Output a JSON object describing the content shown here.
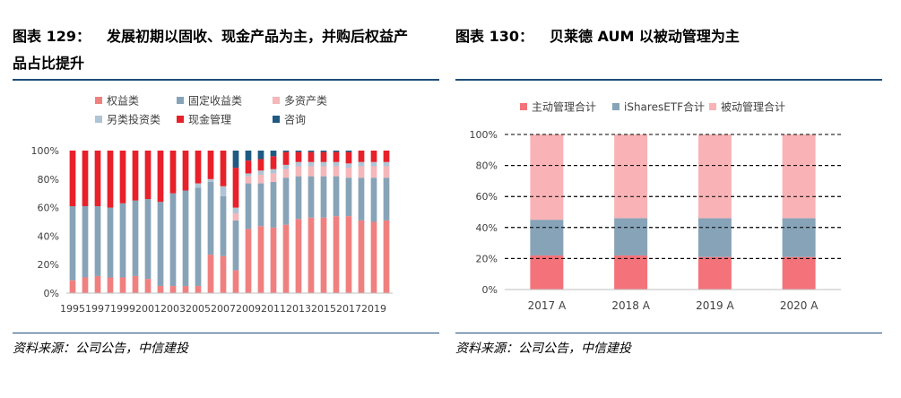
{
  "left": {
    "title_label": "图表 129：",
    "title_line1": "发展初期以固收、现金产品为主，并购后权益产",
    "title_line2": "品占比提升",
    "source": "资料来源：公司公告，中信建投"
  },
  "right": {
    "title_label": "图表 130：",
    "title_text": "贝莱德 AUM 以被动管理为主",
    "source": "资料来源：公司公告，中信建投"
  },
  "colors": {
    "rule": "#1f4e79",
    "equity": "#f08080",
    "fixed": "#87a3b8",
    "multi": "#f5b7b9",
    "alt": "#b0c4d4",
    "cash": "#e8202a",
    "advisory": "#1e5a82",
    "active": "#f4737a",
    "ishares": "#87a3b8",
    "passive": "#f9b3b6"
  },
  "chart_data": [
    {
      "type": "bar",
      "stacked": true,
      "percent": true,
      "title": "",
      "xlabel": "",
      "ylabel": "",
      "ylim": [
        0,
        100
      ],
      "yticks": [
        "0%",
        "20%",
        "40%",
        "60%",
        "80%",
        "100%"
      ],
      "categories": [
        "1995",
        "1996",
        "1997",
        "1998",
        "1999",
        "2000",
        "2001",
        "2002",
        "2003",
        "2004",
        "2005",
        "2006",
        "2007",
        "2008",
        "2009",
        "2010",
        "2011",
        "2012",
        "2013",
        "2014",
        "2015",
        "2016",
        "2017",
        "2018",
        "2019",
        "2020"
      ],
      "xtick_labels": [
        "1995",
        "1997",
        "1999",
        "2001",
        "2003",
        "2005",
        "2007",
        "2009",
        "2011",
        "2013",
        "2015",
        "2017",
        "2019"
      ],
      "series": [
        {
          "name": "权益类",
          "color_key": "equity",
          "values": [
            9,
            11,
            12,
            11,
            11,
            12,
            10,
            5,
            5,
            5,
            5,
            27,
            26,
            16,
            45,
            47,
            46,
            48,
            52,
            53,
            53,
            54,
            54,
            51,
            50,
            51
          ]
        },
        {
          "name": "固定收益类",
          "color_key": "fixed",
          "values": [
            52,
            50,
            49,
            49,
            52,
            53,
            56,
            59,
            65,
            67,
            69,
            51,
            42,
            35,
            32,
            30,
            32,
            33,
            30,
            29,
            29,
            28,
            27,
            30,
            31,
            30
          ]
        },
        {
          "name": "多资产类",
          "color_key": "multi",
          "values": [
            0,
            0,
            0,
            0,
            0,
            0,
            0,
            0,
            0,
            0,
            0,
            0,
            0,
            5,
            5,
            6,
            6,
            6,
            7,
            7,
            7,
            7,
            7,
            8,
            8,
            8
          ]
        },
        {
          "name": "另类投资类",
          "color_key": "alt",
          "values": [
            0,
            0,
            0,
            0,
            0,
            0,
            0,
            0,
            0,
            0,
            3,
            2,
            7,
            4,
            2,
            3,
            3,
            3,
            3,
            3,
            3,
            3,
            3,
            3,
            3,
            3
          ]
        },
        {
          "name": "现金管理",
          "color_key": "cash",
          "values": [
            39,
            39,
            39,
            40,
            37,
            35,
            34,
            36,
            30,
            28,
            23,
            20,
            25,
            28,
            9,
            8,
            9,
            9,
            7,
            7,
            7,
            7,
            8,
            8,
            8,
            8
          ]
        },
        {
          "name": "咨询",
          "color_key": "advisory",
          "values": [
            0,
            0,
            0,
            0,
            0,
            0,
            0,
            0,
            0,
            0,
            0,
            0,
            0,
            12,
            7,
            6,
            4,
            1,
            1,
            1,
            1,
            1,
            1,
            0,
            0,
            0
          ]
        }
      ],
      "legend_rows": [
        [
          "权益类",
          "固定收益类",
          "多资产类"
        ],
        [
          "另类投资类",
          "现金管理",
          "咨询"
        ]
      ]
    },
    {
      "type": "bar",
      "stacked": true,
      "percent": true,
      "title": "",
      "xlabel": "",
      "ylabel": "",
      "ylim": [
        0,
        100
      ],
      "yticks": [
        "0%",
        "20%",
        "40%",
        "60%",
        "80%",
        "100%"
      ],
      "categories": [
        "2017 A",
        "2018 A",
        "2019 A",
        "2020 A"
      ],
      "series": [
        {
          "name": "主动管理合计",
          "color_key": "active",
          "values": [
            22,
            22,
            21,
            21
          ]
        },
        {
          "name": "iSharesETF合计",
          "color_key": "ishares",
          "values": [
            23,
            24,
            25,
            25
          ]
        },
        {
          "name": "被动管理合计",
          "color_key": "passive",
          "values": [
            55,
            54,
            54,
            54
          ]
        }
      ],
      "legend_rows": [
        [
          "主动管理合计",
          "iSharesETF合计",
          "被动管理合计"
        ]
      ]
    }
  ]
}
